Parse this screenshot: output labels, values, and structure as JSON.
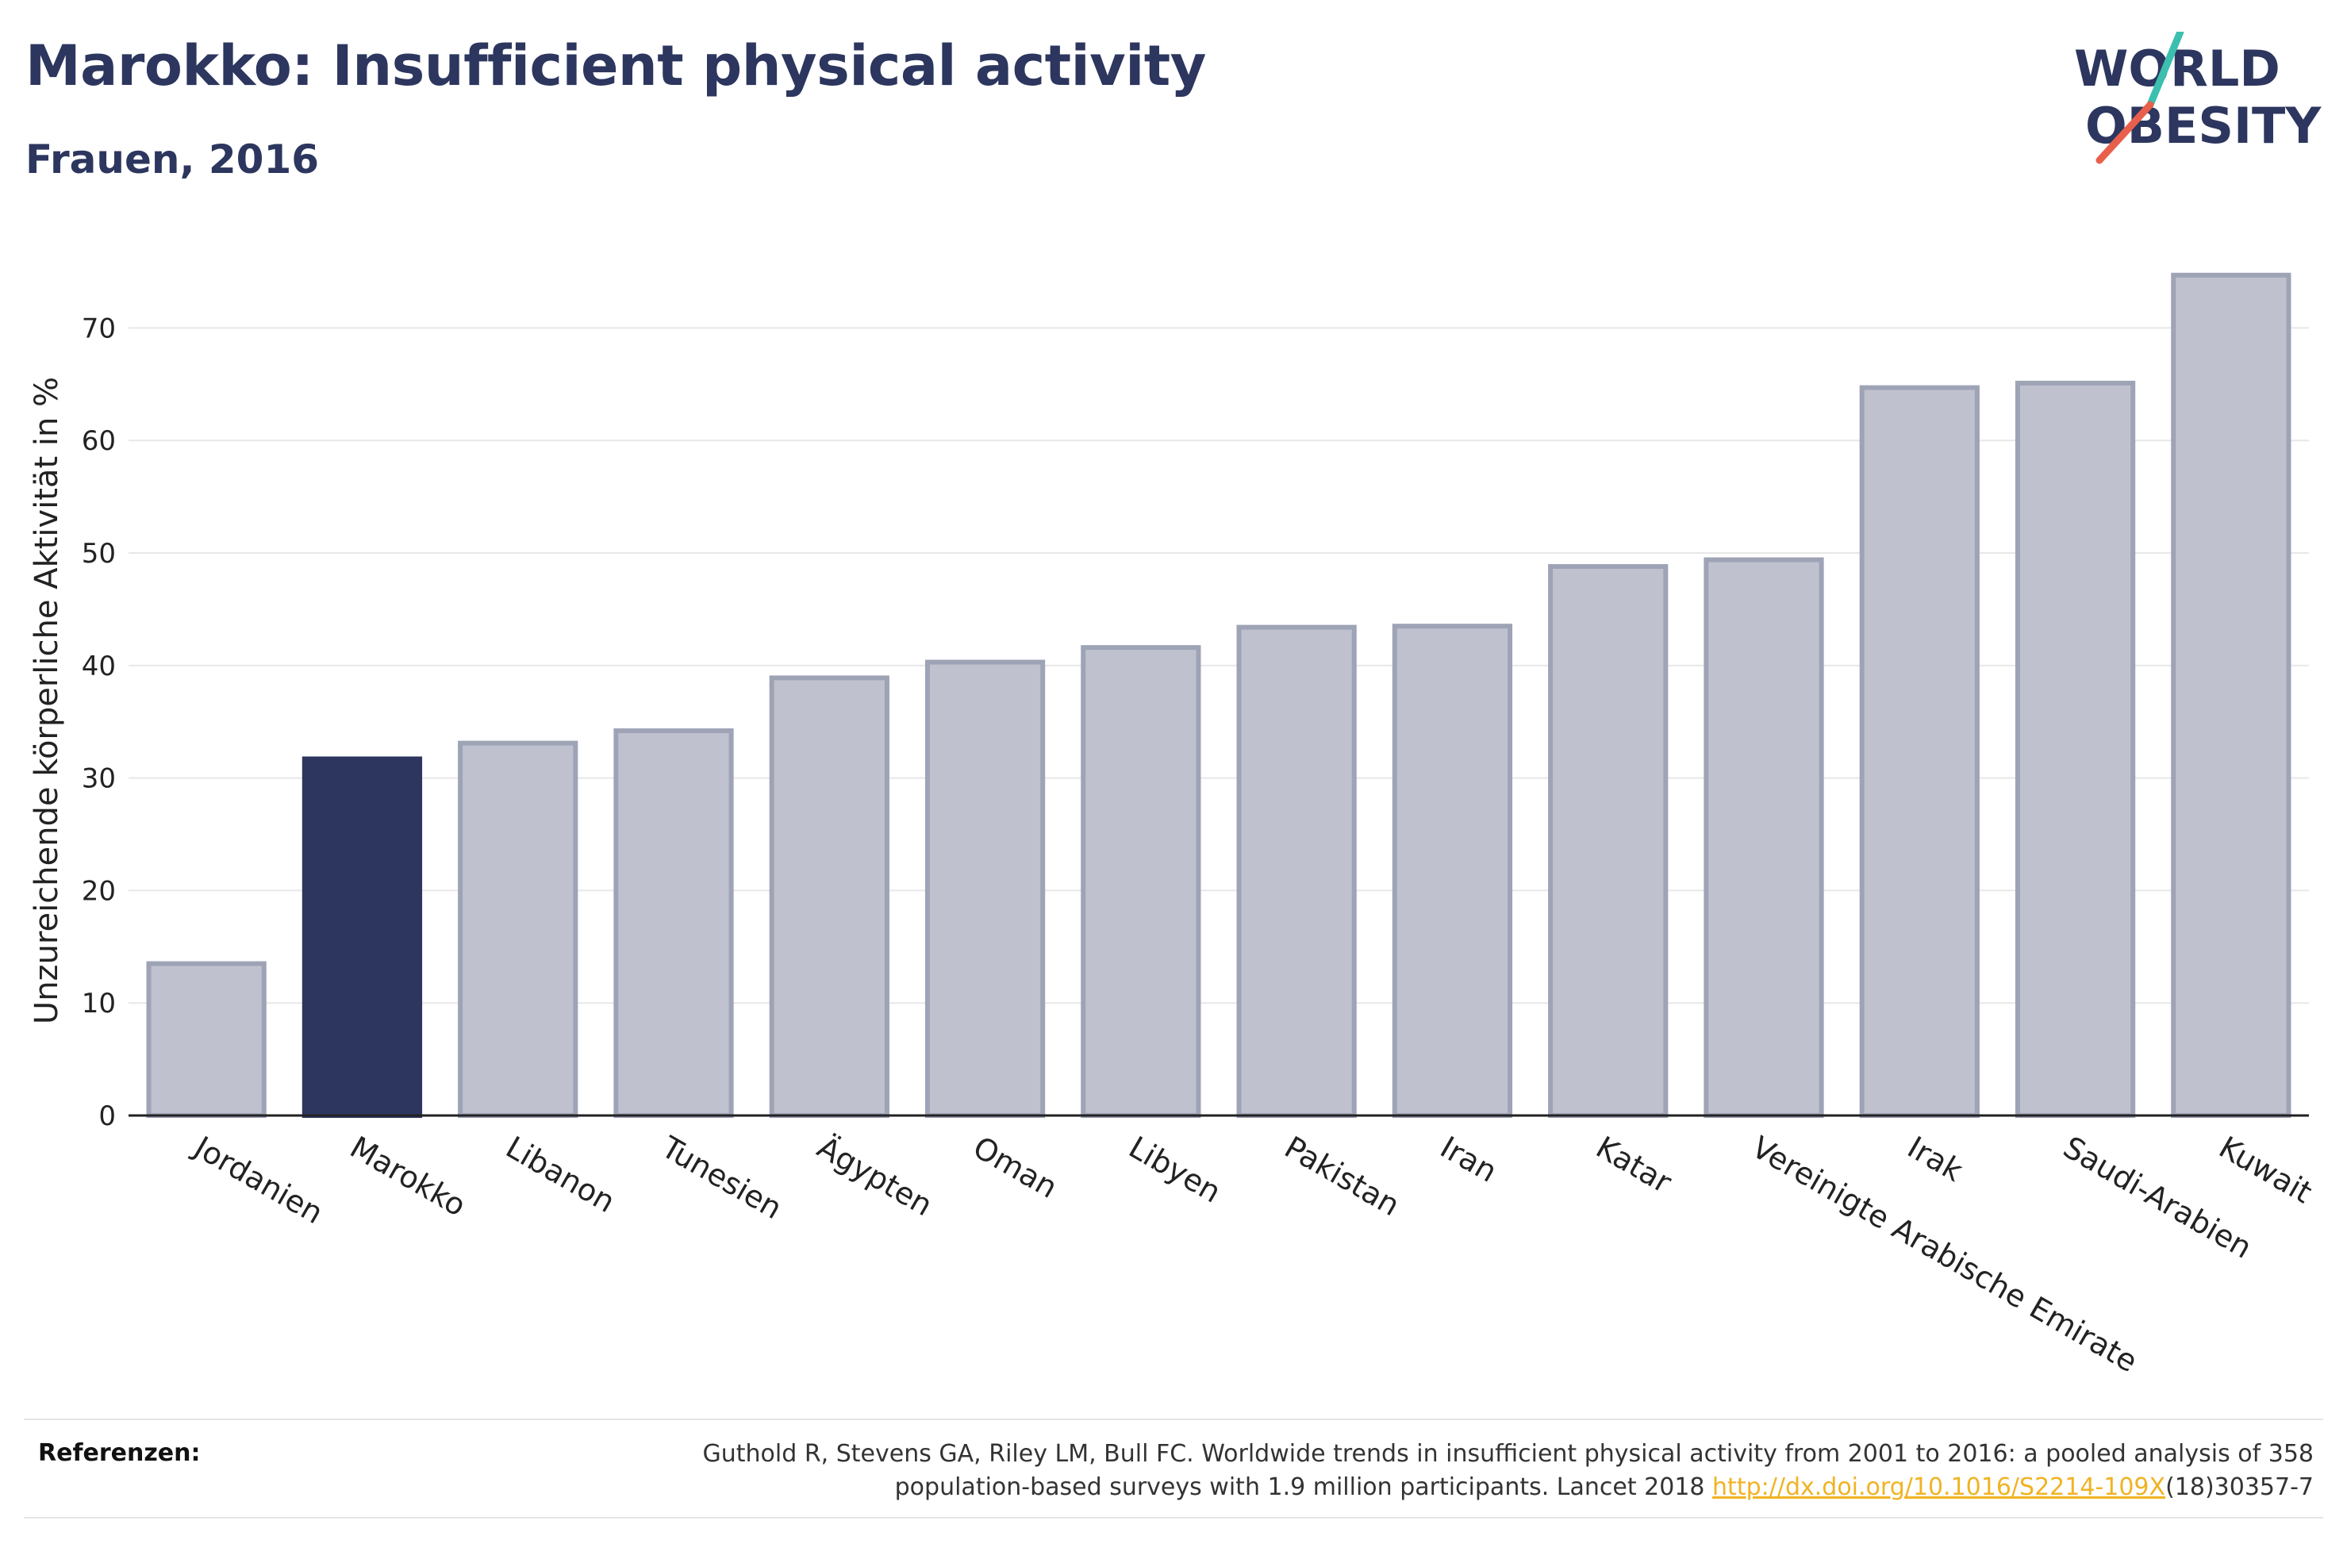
{
  "header": {
    "title": "Marokko: Insufficient physical activity",
    "subtitle": "Frauen, 2016"
  },
  "logo": {
    "line1": "WORLD",
    "line2": "OBESITY",
    "colors": {
      "text": "#2c365e",
      "slash_top": "#3cbfae",
      "slash_bottom": "#e8604c"
    }
  },
  "chart_data": {
    "type": "bar",
    "title": "Marokko: Insufficient physical activity",
    "subtitle": "Frauen, 2016",
    "xlabel": "",
    "ylabel": "Unzureichende körperliche Aktivität in %",
    "ylim": [
      0,
      78
    ],
    "yticks": [
      0,
      10,
      20,
      30,
      40,
      50,
      60,
      70
    ],
    "grid": true,
    "highlight": "Marokko",
    "colors": {
      "default_fill": "#bfc2ce",
      "default_stroke": "#9ea3b6",
      "highlight_fill": "#2c365e"
    },
    "categories": [
      "Jordanien",
      "Marokko",
      "Libanon",
      "Tunesien",
      "Ägypten",
      "Oman",
      "Libyen",
      "Pakistan",
      "Iran",
      "Katar",
      "Vereinigte Arabische Emirate",
      "Irak",
      "Saudi-Arabien",
      "Kuwait"
    ],
    "values": [
      13.5,
      31.7,
      33.1,
      34.2,
      38.9,
      40.3,
      41.6,
      43.4,
      43.5,
      48.8,
      49.4,
      64.7,
      65.1,
      74.7
    ]
  },
  "references": {
    "label": "Referenzen:",
    "line1": "Guthold R, Stevens GA, Riley LM, Bull FC. Worldwide trends in insufficient physical activity from 2001 to 2016: a pooled analysis of 358",
    "line2_prefix": "population-based surveys with 1.9 million participants. Lancet 2018 ",
    "link": "http://dx.doi.org/10.1016/S2214-109X",
    "line2_suffix": "(18)30357-7"
  }
}
